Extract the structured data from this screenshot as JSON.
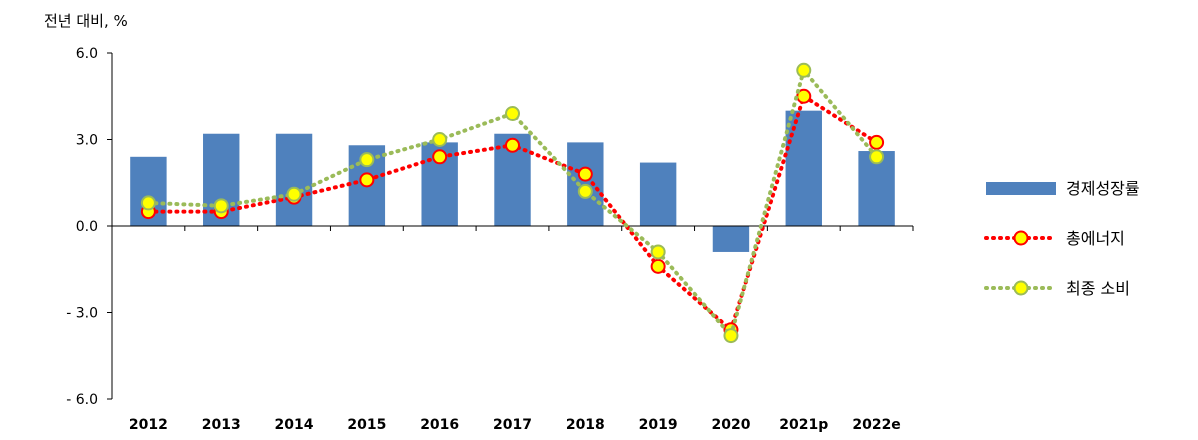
{
  "chart_data": {
    "type": "bar",
    "ylabel": "전년 대비, %",
    "ylim": [
      -6.0,
      6.0
    ],
    "yticks": [
      6.0,
      3.0,
      0.0,
      -3.0,
      -6.0
    ],
    "ytick_labels": [
      "6.0",
      "3.0",
      "0.0",
      "- 3.0",
      "- 6.0"
    ],
    "categories": [
      "2012",
      "2013",
      "2014",
      "2015",
      "2016",
      "2017",
      "2018",
      "2019",
      "2020",
      "2021p",
      "2022e"
    ],
    "grid": false,
    "legend_position": "right",
    "series": [
      {
        "name": "경제성장률",
        "kind": "bar",
        "color": "#4F81BD",
        "values": [
          2.4,
          3.2,
          3.2,
          2.8,
          2.9,
          3.2,
          2.9,
          2.2,
          -0.9,
          4.0,
          2.6
        ]
      },
      {
        "name": "총에너지",
        "kind": "line",
        "line_color": "#FF0000",
        "marker_fill": "#FFFF00",
        "marker_edge": "#FF0000",
        "line_style": "dotted",
        "values": [
          0.5,
          0.5,
          1.0,
          1.6,
          2.4,
          2.8,
          1.8,
          -1.4,
          -3.6,
          4.5,
          2.9
        ]
      },
      {
        "name": "최종 소비",
        "kind": "line",
        "line_color": "#9BBB59",
        "marker_fill": "#FFFF00",
        "marker_edge": "#9BBB59",
        "line_style": "dotted",
        "values": [
          0.8,
          0.7,
          1.1,
          2.3,
          3.0,
          3.9,
          1.2,
          -0.9,
          -3.8,
          5.4,
          2.4
        ]
      }
    ]
  }
}
